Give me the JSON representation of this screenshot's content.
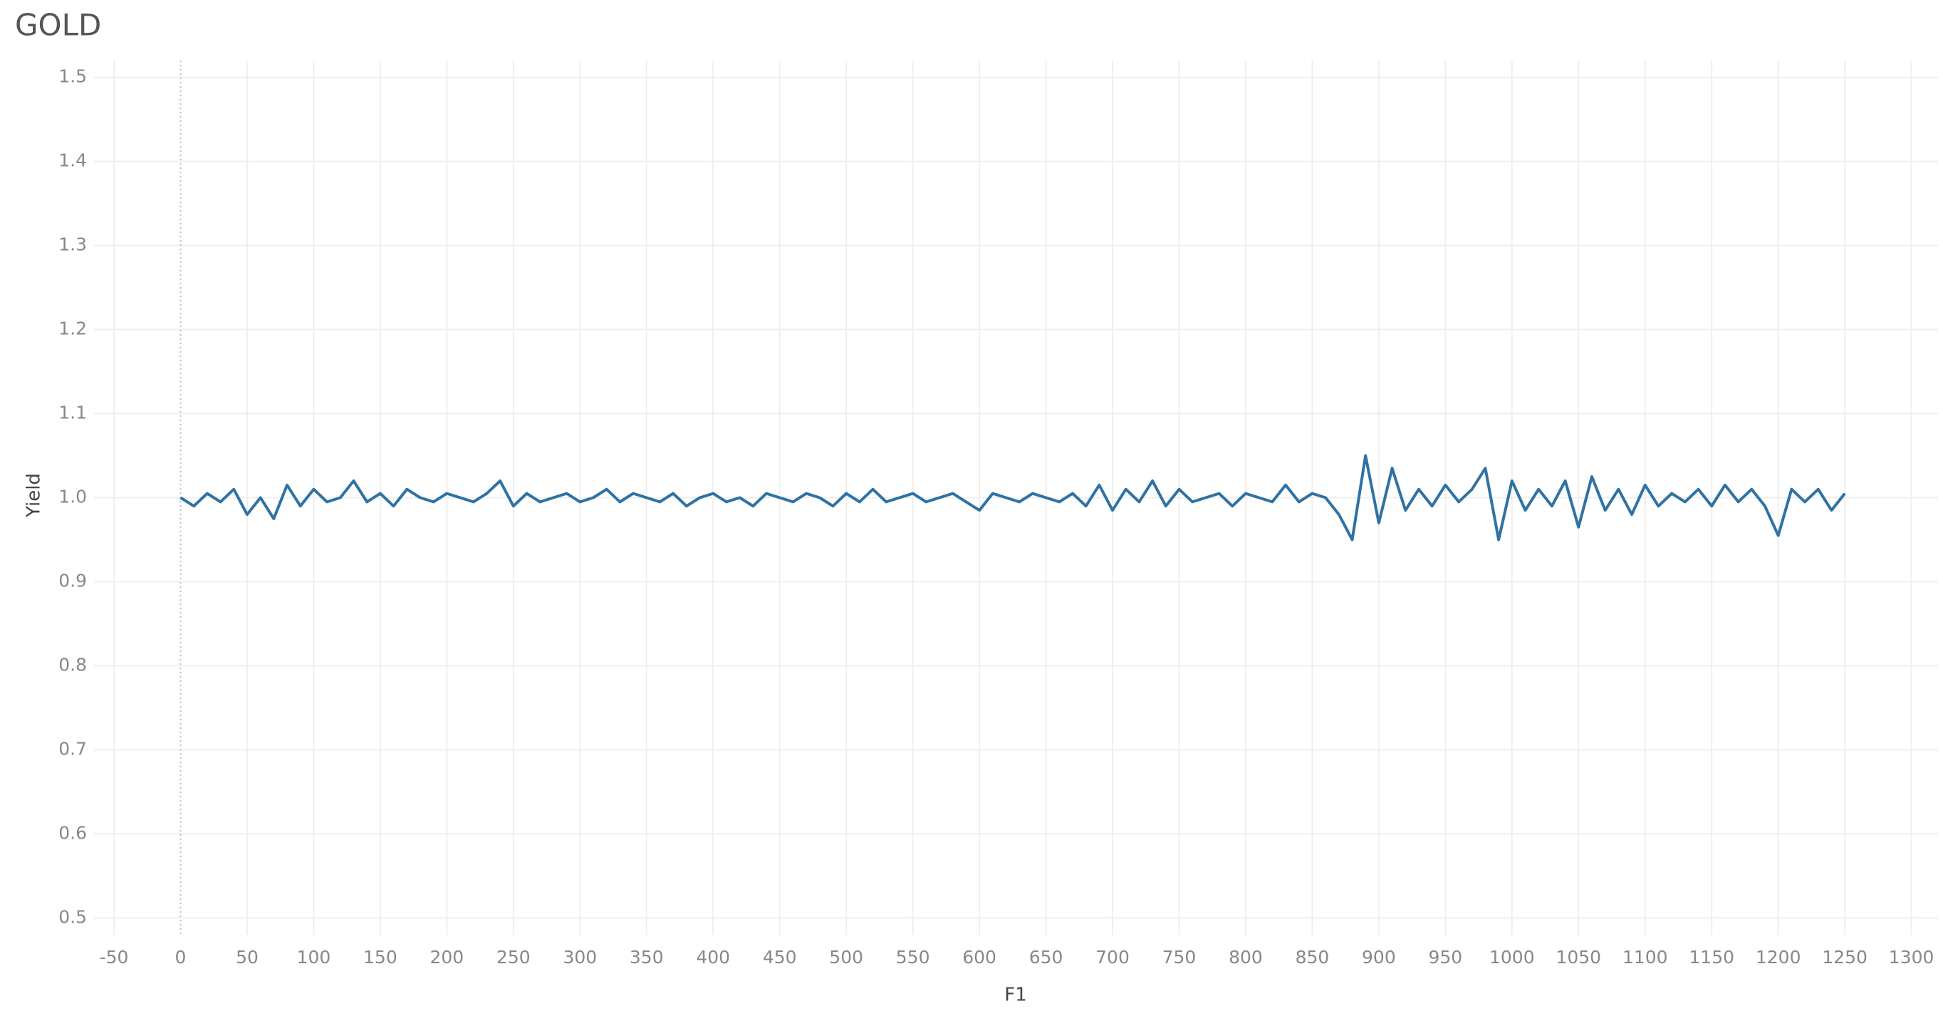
{
  "chart_data": {
    "type": "line",
    "title": "GOLD",
    "xlabel": "F1",
    "ylabel": "Yield",
    "x": [
      0,
      10,
      20,
      30,
      40,
      50,
      60,
      70,
      80,
      90,
      100,
      110,
      120,
      130,
      140,
      150,
      160,
      170,
      180,
      190,
      200,
      210,
      220,
      230,
      240,
      250,
      260,
      270,
      280,
      290,
      300,
      310,
      320,
      330,
      340,
      350,
      360,
      370,
      380,
      390,
      400,
      410,
      420,
      430,
      440,
      450,
      460,
      470,
      480,
      490,
      500,
      510,
      520,
      530,
      540,
      550,
      560,
      570,
      580,
      590,
      600,
      610,
      620,
      630,
      640,
      650,
      660,
      670,
      680,
      690,
      700,
      710,
      720,
      730,
      740,
      750,
      760,
      770,
      780,
      790,
      800,
      810,
      820,
      830,
      840,
      850,
      860,
      870,
      880,
      890,
      900,
      910,
      920,
      930,
      940,
      950,
      960,
      970,
      980,
      990,
      1000,
      1010,
      1020,
      1030,
      1040,
      1050,
      1060,
      1070,
      1080,
      1090,
      1100,
      1110,
      1120,
      1130,
      1140,
      1150,
      1160,
      1170,
      1180,
      1190,
      1200,
      1210,
      1220,
      1230,
      1240,
      1250
    ],
    "series": [
      {
        "name": "Yield",
        "color": "#2f72a3",
        "values": [
          1.0,
          0.99,
          1.005,
          0.995,
          1.01,
          0.98,
          1.0,
          0.975,
          1.015,
          0.99,
          1.01,
          0.995,
          1.0,
          1.02,
          0.995,
          1.005,
          0.99,
          1.01,
          1.0,
          0.995,
          1.005,
          1.0,
          0.995,
          1.005,
          1.02,
          0.99,
          1.005,
          0.995,
          1.0,
          1.005,
          0.995,
          1.0,
          1.01,
          0.995,
          1.005,
          1.0,
          0.995,
          1.005,
          0.99,
          1.0,
          1.005,
          0.995,
          1.0,
          0.99,
          1.005,
          1.0,
          0.995,
          1.005,
          1.0,
          0.99,
          1.005,
          0.995,
          1.01,
          0.995,
          1.0,
          1.005,
          0.995,
          1.0,
          1.005,
          0.995,
          0.985,
          1.005,
          1.0,
          0.995,
          1.005,
          1.0,
          0.995,
          1.005,
          0.99,
          1.015,
          0.985,
          1.01,
          0.995,
          1.02,
          0.99,
          1.01,
          0.995,
          1.0,
          1.005,
          0.99,
          1.005,
          1.0,
          0.995,
          1.015,
          0.995,
          1.005,
          1.0,
          0.98,
          0.95,
          1.05,
          0.97,
          1.035,
          0.985,
          1.01,
          0.99,
          1.015,
          0.995,
          1.01,
          1.035,
          0.95,
          1.02,
          0.985,
          1.01,
          0.99,
          1.02,
          0.965,
          1.025,
          0.985,
          1.01,
          0.98,
          1.015,
          0.99,
          1.005,
          0.995,
          1.01,
          0.99,
          1.015,
          0.995,
          1.01,
          0.99,
          0.955,
          1.01,
          0.995,
          1.01,
          0.985,
          1.005
        ]
      }
    ],
    "xlim": [
      -65,
      1320
    ],
    "xticks": [
      -50,
      0,
      50,
      100,
      150,
      200,
      250,
      300,
      350,
      400,
      450,
      500,
      550,
      600,
      650,
      700,
      750,
      800,
      850,
      900,
      950,
      1000,
      1050,
      1100,
      1150,
      1200,
      1250,
      1300
    ],
    "ylim": [
      0.48,
      1.52
    ],
    "yticks": [
      0.5,
      0.6,
      0.7,
      0.8,
      0.9,
      {
        "value": 1.0,
        "label": "1.0"
      },
      1.1,
      1.2,
      1.3,
      1.4,
      1.5
    ],
    "grid": true,
    "zero_line": true
  }
}
